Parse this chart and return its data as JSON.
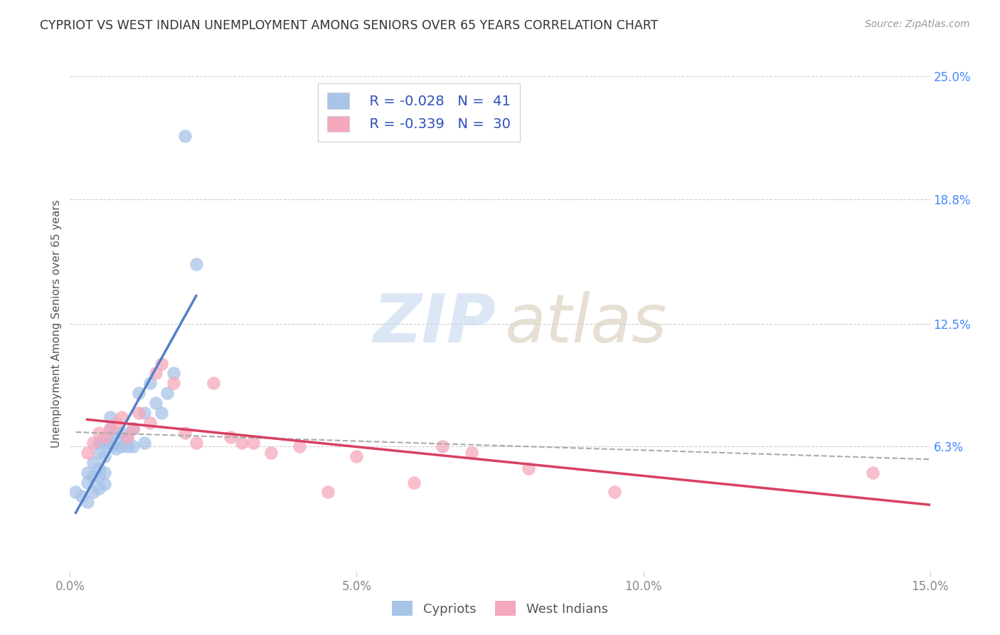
{
  "title": "CYPRIOT VS WEST INDIAN UNEMPLOYMENT AMONG SENIORS OVER 65 YEARS CORRELATION CHART",
  "source": "Source: ZipAtlas.com",
  "ylabel": "Unemployment Among Seniors over 65 years",
  "xlim": [
    0.0,
    0.15
  ],
  "ylim": [
    0.0,
    0.25
  ],
  "xticks": [
    0.0,
    0.05,
    0.1,
    0.15
  ],
  "xticklabels": [
    "0.0%",
    "5.0%",
    "10.0%",
    "15.0%"
  ],
  "yticks_right": [
    0.0,
    0.063,
    0.125,
    0.188,
    0.25
  ],
  "yticklabels_right": [
    "0.0%",
    "6.3%",
    "12.5%",
    "18.8%",
    "25.0%"
  ],
  "legend_r1": "R = -0.028",
  "legend_n1": "N =  41",
  "legend_r2": "R = -0.339",
  "legend_n2": "N =  30",
  "cypriot_color": "#a8c4e8",
  "west_indian_color": "#f5a8bc",
  "cypriot_line_color": "#5580c8",
  "west_indian_line_color": "#d84060",
  "background_color": "#ffffff",
  "cypriot_x": [
    0.001,
    0.002,
    0.003,
    0.003,
    0.003,
    0.004,
    0.004,
    0.004,
    0.005,
    0.005,
    0.005,
    0.005,
    0.005,
    0.006,
    0.006,
    0.006,
    0.006,
    0.007,
    0.007,
    0.007,
    0.007,
    0.007,
    0.008,
    0.008,
    0.008,
    0.009,
    0.009,
    0.01,
    0.01,
    0.011,
    0.011,
    0.012,
    0.013,
    0.013,
    0.014,
    0.015,
    0.016,
    0.017,
    0.018,
    0.02,
    0.022
  ],
  "cypriot_y": [
    0.04,
    0.038,
    0.045,
    0.05,
    0.035,
    0.04,
    0.048,
    0.055,
    0.042,
    0.048,
    0.052,
    0.06,
    0.065,
    0.044,
    0.05,
    0.058,
    0.065,
    0.063,
    0.065,
    0.068,
    0.072,
    0.078,
    0.062,
    0.065,
    0.07,
    0.063,
    0.07,
    0.063,
    0.068,
    0.063,
    0.072,
    0.09,
    0.065,
    0.08,
    0.095,
    0.085,
    0.08,
    0.09,
    0.1,
    0.22,
    0.155
  ],
  "west_indian_x": [
    0.003,
    0.004,
    0.005,
    0.006,
    0.007,
    0.008,
    0.009,
    0.01,
    0.011,
    0.012,
    0.014,
    0.015,
    0.016,
    0.018,
    0.02,
    0.022,
    0.025,
    0.028,
    0.03,
    0.032,
    0.035,
    0.04,
    0.045,
    0.05,
    0.06,
    0.065,
    0.07,
    0.08,
    0.095,
    0.14
  ],
  "west_indian_y": [
    0.06,
    0.065,
    0.07,
    0.068,
    0.072,
    0.075,
    0.078,
    0.068,
    0.072,
    0.08,
    0.075,
    0.1,
    0.105,
    0.095,
    0.07,
    0.065,
    0.095,
    0.068,
    0.065,
    0.065,
    0.06,
    0.063,
    0.04,
    0.058,
    0.045,
    0.063,
    0.06,
    0.052,
    0.04,
    0.05
  ]
}
